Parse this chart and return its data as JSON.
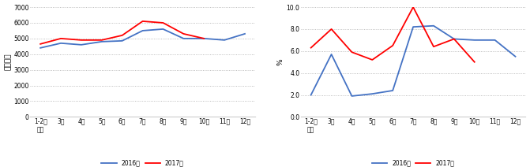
{
  "categories": [
    "1-2月\n平均",
    "3月",
    "4月",
    "5月",
    "6月",
    "7月",
    "8月",
    "9月",
    "10月",
    "11月",
    "12月"
  ],
  "left_2016": [
    4400,
    4700,
    4600,
    4800,
    4850,
    5500,
    5600,
    5000,
    5000,
    4900,
    5300
  ],
  "left_2017": [
    4650,
    5000,
    4900,
    4900,
    5200,
    6100,
    6000,
    5300,
    5000,
    null,
    null
  ],
  "right_2016": [
    2.0,
    5.7,
    1.9,
    2.1,
    2.4,
    8.2,
    8.3,
    7.1,
    7.0,
    7.0,
    5.5
  ],
  "right_2017": [
    6.3,
    8.0,
    5.9,
    5.2,
    6.5,
    10.0,
    6.4,
    7.1,
    5.0,
    null,
    null
  ],
  "color_2016": "#4472C4",
  "color_2017": "#FF0000",
  "left_ylabel": "亿千瓦时",
  "right_ylabel": "%",
  "left_ylim": [
    0,
    7000
  ],
  "left_yticks": [
    0,
    1000,
    2000,
    3000,
    4000,
    5000,
    6000,
    7000
  ],
  "right_ylim": [
    0.0,
    10.0
  ],
  "right_yticks": [
    0.0,
    2.0,
    4.0,
    6.0,
    8.0,
    10.0
  ],
  "legend_2016": "2016年",
  "legend_2017": "2017年",
  "bg_color": "#FFFFFF",
  "grid_color": "#AAAAAA",
  "linewidth": 1.3,
  "marker_size": 0
}
